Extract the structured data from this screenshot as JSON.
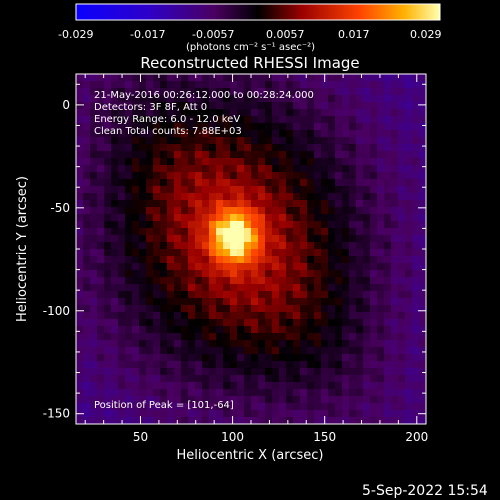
{
  "chart_data": {
    "type": "heatmap",
    "title": "Reconstructed RHESSI Image",
    "xlabel": "Heliocentric X (arcsec)",
    "ylabel": "Heliocentric Y (arcsec)",
    "xlim": [
      15,
      205
    ],
    "ylim": [
      -155,
      15
    ],
    "xticks": [
      50,
      100,
      150,
      200
    ],
    "yticks": [
      0,
      -50,
      -100,
      -150
    ],
    "colorbar": {
      "min": -0.029,
      "max": 0.029,
      "ticks": [
        "-0.029",
        "-0.017",
        "-0.0057",
        "0.0057",
        "0.017",
        "0.029"
      ],
      "units_label": "(photons cm⁻² s⁻¹ asec⁻²)"
    },
    "peak": {
      "x": 101,
      "y": -64,
      "value": 0.029
    },
    "annotations": {
      "time_range": "21-May-2016 00:26:12.000 to 00:28:24.000",
      "detectors": "Detectors: 3F 8F, Att 0",
      "energy": "Energy Range: 6.0 - 12.0 keV",
      "clean": "Clean     Total counts: 7.88E+03",
      "peak_label": "Position of Peak = [101,-64]"
    }
  },
  "footer": {
    "date": "5-Sep-2022 15:54"
  }
}
